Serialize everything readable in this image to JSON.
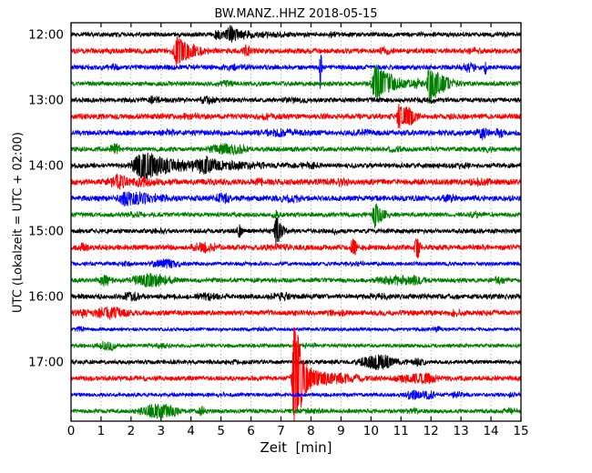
{
  "chart_data": {
    "type": "line",
    "subtype": "seismogram-dayplot",
    "title": "BW.MANZ..HHZ 2018-05-15",
    "xlabel": "Zeit  [min]",
    "ylabel": "UTC (Lokalzeit = UTC + 02:00)",
    "xlim": [
      0,
      15
    ],
    "xticks": [
      "0",
      "1",
      "2",
      "3",
      "4",
      "5",
      "6",
      "7",
      "8",
      "9",
      "10",
      "11",
      "12",
      "13",
      "14",
      "15"
    ],
    "yticks": [
      {
        "label": "12:00",
        "row": 0
      },
      {
        "label": "13:00",
        "row": 4
      },
      {
        "label": "14:00",
        "row": 8
      },
      {
        "label": "15:00",
        "row": 12
      },
      {
        "label": "16:00",
        "row": 16
      },
      {
        "label": "17:00",
        "row": 20
      }
    ],
    "grid": "dotted-vertical-every-minute",
    "legend": "none",
    "n_rows": 24,
    "minutes_per_row": 15,
    "colors": {
      "cycle": [
        "#000000",
        "#ff0000",
        "#0000ff",
        "#008000"
      ],
      "axis": "#000000",
      "grid": "#888888",
      "background": "#ffffff"
    },
    "traces": [
      {
        "time": "12:00",
        "color": "#000000",
        "noise": 2.4,
        "events": [
          {
            "t": 4.9,
            "a": 4,
            "w": 0.12
          },
          {
            "t": 5.3,
            "a": 10,
            "w": 0.08,
            "d": 0.3
          },
          {
            "t": 6.5,
            "a": 1.5,
            "w": 1.0
          },
          {
            "t": 8.7,
            "a": 2.5,
            "w": 0.1
          },
          {
            "t": 11.7,
            "a": 2,
            "w": 0.08
          },
          {
            "t": 14.5,
            "a": 1.5,
            "w": 0.1
          }
        ]
      },
      {
        "time": "12:15",
        "color": "#ff0000",
        "noise": 2.8,
        "events": [
          {
            "t": 3.55,
            "a": 14,
            "w": 0.08,
            "d": 0.3
          },
          {
            "t": 3.85,
            "a": 4,
            "w": 0.4
          },
          {
            "t": 5.87,
            "a": 5,
            "w": 0.1
          },
          {
            "t": 10.5,
            "a": 3,
            "w": 0.15
          },
          {
            "t": 13.5,
            "a": 2.5,
            "w": 0.2
          }
        ]
      },
      {
        "time": "12:30",
        "color": "#0000ff",
        "noise": 2.6,
        "events": [
          {
            "t": 1.45,
            "a": 3,
            "w": 0.15
          },
          {
            "t": 5.5,
            "a": 2,
            "w": 0.3
          },
          {
            "t": 8.32,
            "a": 26,
            "w": 0.025
          },
          {
            "t": 13.27,
            "a": 4,
            "w": 0.15
          },
          {
            "t": 13.82,
            "a": 7,
            "w": 0.03
          }
        ]
      },
      {
        "time": "12:45",
        "color": "#008000",
        "noise": 2.4,
        "events": [
          {
            "t": 5.1,
            "a": 2.5,
            "w": 0.2
          },
          {
            "t": 10.15,
            "a": 22,
            "w": 0.07,
            "d": 0.35
          },
          {
            "t": 10.7,
            "a": 4,
            "w": 0.4
          },
          {
            "t": 11.5,
            "a": 3,
            "w": 0.15
          },
          {
            "t": 11.95,
            "a": 22,
            "w": 0.05,
            "d": 0.3
          },
          {
            "t": 12.4,
            "a": 3.5,
            "w": 0.3
          }
        ]
      },
      {
        "time": "13:00",
        "color": "#000000",
        "noise": 2.5,
        "events": [
          {
            "t": 2.8,
            "a": 3,
            "w": 0.2
          },
          {
            "t": 4.5,
            "a": 3,
            "w": 0.25
          },
          {
            "t": 7.5,
            "a": 2,
            "w": 0.3
          },
          {
            "t": 12.0,
            "a": 2,
            "w": 0.2
          }
        ]
      },
      {
        "time": "13:15",
        "color": "#ff0000",
        "noise": 2.9,
        "events": [
          {
            "t": 4.0,
            "a": 2,
            "w": 0.3
          },
          {
            "t": 6.5,
            "a": 2,
            "w": 0.2
          },
          {
            "t": 10.94,
            "a": 14,
            "w": 0.06,
            "d": 0.25
          },
          {
            "t": 11.3,
            "a": 7,
            "w": 0.12
          }
        ]
      },
      {
        "time": "13:30",
        "color": "#0000ff",
        "noise": 2.9,
        "events": [
          {
            "t": 3.25,
            "a": 3.5,
            "w": 0.12
          },
          {
            "t": 7.0,
            "a": 3,
            "w": 0.5
          },
          {
            "t": 9.8,
            "a": 2,
            "w": 0.3
          },
          {
            "t": 13.72,
            "a": 6,
            "w": 0.12
          },
          {
            "t": 14.28,
            "a": 4.5,
            "w": 0.1
          }
        ]
      },
      {
        "time": "13:45",
        "color": "#008000",
        "noise": 2.5,
        "events": [
          {
            "t": 1.48,
            "a": 5.5,
            "w": 0.12
          },
          {
            "t": 5.1,
            "a": 5,
            "w": 0.35
          },
          {
            "t": 5.6,
            "a": 3,
            "w": 0.2
          },
          {
            "t": 10.8,
            "a": 2,
            "w": 0.2
          },
          {
            "t": 13.9,
            "a": 2,
            "w": 0.15
          }
        ]
      },
      {
        "time": "14:00",
        "color": "#000000",
        "noise": 2.6,
        "events": [
          {
            "t": 2.3,
            "a": 6,
            "w": 0.15
          },
          {
            "t": 2.6,
            "a": 13,
            "w": 0.3,
            "d": 0.9
          },
          {
            "t": 4.5,
            "a": 5,
            "w": 0.2
          },
          {
            "t": 5.2,
            "a": 3,
            "w": 1.0
          },
          {
            "t": 7.9,
            "a": 2,
            "w": 0.3
          },
          {
            "t": 13.0,
            "a": 1.5,
            "w": 0.4
          }
        ]
      },
      {
        "time": "14:15",
        "color": "#ff0000",
        "noise": 3.2,
        "events": [
          {
            "t": 1.55,
            "a": 5,
            "w": 0.2
          },
          {
            "t": 2.3,
            "a": 3.5,
            "w": 0.5
          },
          {
            "t": 6.3,
            "a": 2.5,
            "w": 0.2
          },
          {
            "t": 9.0,
            "a": 2,
            "w": 0.3
          },
          {
            "t": 13.6,
            "a": 2.5,
            "w": 0.25
          }
        ]
      },
      {
        "time": "14:30",
        "color": "#0000ff",
        "noise": 2.9,
        "events": [
          {
            "t": 1.8,
            "a": 6,
            "w": 0.15
          },
          {
            "t": 2.25,
            "a": 6,
            "w": 0.2
          },
          {
            "t": 2.9,
            "a": 3,
            "w": 0.4
          },
          {
            "t": 5.05,
            "a": 4.5,
            "w": 0.2
          },
          {
            "t": 7.3,
            "a": 3,
            "w": 0.3
          },
          {
            "t": 12.6,
            "a": 2.5,
            "w": 0.2
          }
        ]
      },
      {
        "time": "14:45",
        "color": "#008000",
        "noise": 2.4,
        "events": [
          {
            "t": 2.2,
            "a": 2,
            "w": 0.3
          },
          {
            "t": 6.85,
            "a": 3.5,
            "w": 0.1
          },
          {
            "t": 10.13,
            "a": 16,
            "w": 0.05,
            "d": 0.2
          },
          {
            "t": 13.5,
            "a": 2.5,
            "w": 0.15
          }
        ]
      },
      {
        "time": "15:00",
        "color": "#000000",
        "noise": 2.4,
        "events": [
          {
            "t": 3.0,
            "a": 1.5,
            "w": 0.3
          },
          {
            "t": 5.63,
            "a": 8,
            "w": 0.06
          },
          {
            "t": 6.85,
            "a": 18,
            "w": 0.05,
            "d": 0.15
          },
          {
            "t": 8.85,
            "a": 3,
            "w": 0.08
          }
        ]
      },
      {
        "time": "15:15",
        "color": "#ff0000",
        "noise": 2.8,
        "events": [
          {
            "t": 0.4,
            "a": 3,
            "w": 0.12
          },
          {
            "t": 4.5,
            "a": 5,
            "w": 0.3
          },
          {
            "t": 7.0,
            "a": 2,
            "w": 0.3
          },
          {
            "t": 9.42,
            "a": 9,
            "w": 0.07
          },
          {
            "t": 11.55,
            "a": 14,
            "w": 0.06
          }
        ]
      },
      {
        "time": "15:30",
        "color": "#0000ff",
        "noise": 2.0,
        "events": [
          {
            "t": 1.8,
            "a": 2,
            "w": 0.2
          },
          {
            "t": 3.15,
            "a": 4.5,
            "w": 0.35
          },
          {
            "t": 6.0,
            "a": 1.5,
            "w": 0.3
          },
          {
            "t": 9.5,
            "a": 1.5,
            "w": 0.3
          }
        ]
      },
      {
        "time": "15:45",
        "color": "#008000",
        "noise": 2.4,
        "events": [
          {
            "t": 1.15,
            "a": 5.5,
            "w": 0.15
          },
          {
            "t": 2.5,
            "a": 6,
            "w": 0.35
          },
          {
            "t": 3.1,
            "a": 3,
            "w": 0.3
          },
          {
            "t": 10.8,
            "a": 4.5,
            "w": 0.45
          },
          {
            "t": 11.5,
            "a": 3,
            "w": 0.2
          },
          {
            "t": 14.3,
            "a": 3.5,
            "w": 0.15
          }
        ]
      },
      {
        "time": "16:00",
        "color": "#000000",
        "noise": 2.7,
        "events": [
          {
            "t": 2.0,
            "a": 3.5,
            "w": 0.2
          },
          {
            "t": 4.6,
            "a": 3,
            "w": 0.25
          },
          {
            "t": 7.0,
            "a": 2.5,
            "w": 0.3
          },
          {
            "t": 10.3,
            "a": 2,
            "w": 0.3
          }
        ]
      },
      {
        "time": "16:15",
        "color": "#ff0000",
        "noise": 2.8,
        "events": [
          {
            "t": 0.4,
            "a": 3,
            "w": 0.2
          },
          {
            "t": 1.35,
            "a": 5.5,
            "w": 0.35
          },
          {
            "t": 8.9,
            "a": 2,
            "w": 0.2
          },
          {
            "t": 12.8,
            "a": 2,
            "w": 0.2
          }
        ]
      },
      {
        "time": "16:30",
        "color": "#0000ff",
        "noise": 1.8,
        "events": [
          {
            "t": 0.3,
            "a": 2.5,
            "w": 0.1
          },
          {
            "t": 6.5,
            "a": 1,
            "w": 0.3
          },
          {
            "t": 12.2,
            "a": 3,
            "w": 0.08
          }
        ]
      },
      {
        "time": "16:45",
        "color": "#008000",
        "noise": 2.0,
        "events": [
          {
            "t": 1.25,
            "a": 4.5,
            "w": 0.25
          },
          {
            "t": 3.0,
            "a": 2,
            "w": 0.2
          },
          {
            "t": 8.0,
            "a": 1.5,
            "w": 0.3
          }
        ]
      },
      {
        "time": "17:00",
        "color": "#000000",
        "noise": 2.2,
        "events": [
          {
            "t": 5.5,
            "a": 1.5,
            "w": 0.3
          },
          {
            "t": 10.1,
            "a": 6,
            "w": 0.35
          },
          {
            "t": 10.6,
            "a": 3.5,
            "w": 0.3
          },
          {
            "t": 11.55,
            "a": 3.5,
            "w": 0.2
          }
        ]
      },
      {
        "time": "17:15",
        "color": "#ff0000",
        "noise": 2.5,
        "events": [
          {
            "t": 2.5,
            "a": 1.5,
            "w": 0.3
          },
          {
            "t": 7.45,
            "a": 66,
            "w": 0.05,
            "d": 0.12
          },
          {
            "t": 7.55,
            "a": 26,
            "w": 0.05,
            "d": 0.5
          },
          {
            "t": 9.0,
            "a": 3,
            "w": 0.5
          },
          {
            "t": 11.3,
            "a": 3.5,
            "w": 0.4
          },
          {
            "t": 11.9,
            "a": 4,
            "w": 0.2
          }
        ]
      },
      {
        "time": "17:30",
        "color": "#0000ff",
        "noise": 2.0,
        "events": [
          {
            "t": 5.0,
            "a": 1,
            "w": 0.3
          },
          {
            "t": 11.45,
            "a": 5,
            "w": 0.2
          },
          {
            "t": 11.95,
            "a": 4,
            "w": 0.15
          },
          {
            "t": 12.85,
            "a": 3,
            "w": 0.12
          },
          {
            "t": 14.7,
            "a": 2.5,
            "w": 0.1
          }
        ]
      },
      {
        "time": "17:45",
        "color": "#008000",
        "noise": 2.2,
        "events": [
          {
            "t": 2.75,
            "a": 6,
            "w": 0.3
          },
          {
            "t": 3.3,
            "a": 5,
            "w": 0.25
          },
          {
            "t": 4.35,
            "a": 3.5,
            "w": 0.12
          },
          {
            "t": 8.0,
            "a": 1.5,
            "w": 0.4
          },
          {
            "t": 11.4,
            "a": 3,
            "w": 0.12
          },
          {
            "t": 14.6,
            "a": 2.5,
            "w": 0.15
          }
        ]
      }
    ]
  }
}
